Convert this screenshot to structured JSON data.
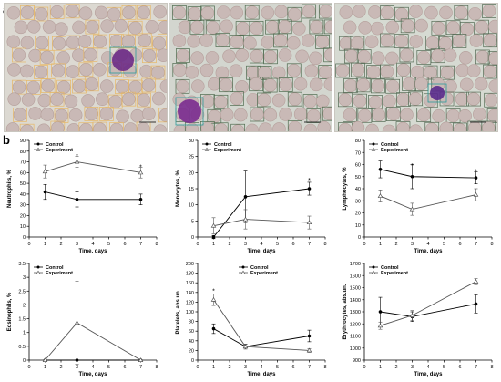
{
  "panel_a_label": "a",
  "panel_b_label": "b",
  "micrographs": [
    {
      "name": "micrograph-neutrophil",
      "bg": "#dcd9d2",
      "box_color": "#e7b766",
      "cell_color": "#6b2a86"
    },
    {
      "name": "micrograph-monocyte",
      "bg": "#d3d6cf",
      "box_color": "#4f6b4f",
      "cell_color": "#7a2b8f"
    },
    {
      "name": "micrograph-lymphocyte",
      "bg": "#d6dad2",
      "box_color": "#556b55",
      "cell_color": "#5a2a8c"
    }
  ],
  "colors": {
    "axis": "#000000",
    "control": "#000000",
    "experiment": "#555555"
  },
  "chart_data": [
    {
      "type": "line",
      "x": [
        1,
        3,
        7
      ],
      "xlim": [
        0,
        8
      ],
      "xticks": [
        0,
        1,
        2,
        3,
        4,
        5,
        6,
        7,
        8
      ],
      "xlabel": "Time, days",
      "ylabel": "Neutrophils, %",
      "ylim": [
        0,
        90
      ],
      "yticks": [
        0,
        10,
        20,
        30,
        40,
        50,
        60,
        70,
        80,
        90
      ],
      "legend": "top-left",
      "series": [
        {
          "name": "Control",
          "marker": "circle",
          "values": [
            42,
            35,
            35
          ],
          "err": [
            7,
            7,
            5
          ]
        },
        {
          "name": "Experiment",
          "marker": "triangle",
          "values": [
            61,
            70,
            60
          ],
          "err": [
            6,
            5,
            5
          ]
        }
      ],
      "annotations": [
        {
          "x": 3,
          "y": 75,
          "text": "*"
        },
        {
          "x": 7,
          "y": 65,
          "text": "*"
        }
      ]
    },
    {
      "type": "line",
      "x": [
        1,
        3,
        7
      ],
      "xlim": [
        0,
        8
      ],
      "xticks": [
        0,
        1,
        2,
        3,
        4,
        5,
        6,
        7,
        8
      ],
      "xlabel": "Time, days",
      "ylabel": "Monocytes, %",
      "ylim": [
        0,
        30
      ],
      "yticks": [
        0,
        5,
        10,
        15,
        20,
        25,
        30
      ],
      "legend": "top-left",
      "series": [
        {
          "name": "Control",
          "marker": "circle",
          "values": [
            0,
            12.5,
            15
          ],
          "err": [
            0.5,
            8,
            2
          ]
        },
        {
          "name": "Experiment",
          "marker": "triangle",
          "values": [
            3.5,
            5.5,
            4.5
          ],
          "err": [
            2.5,
            3,
            2
          ]
        }
      ],
      "annotations": [
        {
          "x": 7,
          "y": 17.5,
          "text": "*"
        }
      ]
    },
    {
      "type": "line",
      "x": [
        1,
        3,
        7
      ],
      "xlim": [
        0,
        8
      ],
      "xticks": [
        0,
        1,
        2,
        3,
        4,
        5,
        6,
        7,
        8
      ],
      "xlabel": "Time, days",
      "ylabel": "Lymphocytes, %",
      "ylim": [
        0,
        80
      ],
      "yticks": [
        0,
        10,
        20,
        30,
        40,
        50,
        60,
        70,
        80
      ],
      "legend": "top-left",
      "series": [
        {
          "name": "Control",
          "marker": "circle",
          "values": [
            56,
            50,
            49
          ],
          "err": [
            7,
            10,
            5
          ]
        },
        {
          "name": "Experiment",
          "marker": "triangle",
          "values": [
            34,
            23,
            35
          ],
          "err": [
            5,
            5,
            5
          ]
        }
      ],
      "annotations": [
        {
          "x": 3,
          "y": 59,
          "text": "*"
        },
        {
          "x": 7,
          "y": 54,
          "text": "*"
        }
      ]
    },
    {
      "type": "line",
      "x": [
        1,
        3,
        7
      ],
      "xlim": [
        0,
        8
      ],
      "xticks": [
        0,
        1,
        2,
        3,
        4,
        5,
        6,
        7,
        8
      ],
      "xlabel": "Time, days",
      "ylabel": "Eosinophils, %",
      "ylim": [
        0,
        3.5
      ],
      "yticks": [
        0,
        0.5,
        1,
        1.5,
        2,
        2.5,
        3,
        3.5
      ],
      "legend": "top-left",
      "series": [
        {
          "name": "Control",
          "marker": "circle",
          "values": [
            0,
            0,
            0
          ],
          "err": [
            0,
            0,
            0
          ]
        },
        {
          "name": "Experiment",
          "marker": "triangle",
          "values": [
            0,
            1.35,
            0
          ],
          "err": [
            0,
            1.5,
            0
          ]
        }
      ],
      "annotations": []
    },
    {
      "type": "line",
      "x": [
        1,
        3,
        7
      ],
      "xlim": [
        0,
        8
      ],
      "xticks": [
        0,
        1,
        2,
        3,
        4,
        5,
        6,
        7,
        8
      ],
      "xlabel": "Time, days",
      "ylabel": "Platelets, abs.un.",
      "ylim": [
        0,
        200
      ],
      "yticks": [
        0,
        20,
        40,
        60,
        80,
        100,
        120,
        140,
        160,
        180,
        200
      ],
      "legend": "top-center",
      "series": [
        {
          "name": "Control",
          "marker": "circle",
          "values": [
            65,
            28,
            50
          ],
          "err": [
            10,
            5,
            12
          ]
        },
        {
          "name": "Experiment",
          "marker": "triangle",
          "values": [
            125,
            28,
            20
          ],
          "err": [
            12,
            5,
            4
          ]
        }
      ],
      "annotations": [
        {
          "x": 1,
          "y": 142,
          "text": "*"
        }
      ]
    },
    {
      "type": "line",
      "x": [
        1,
        3,
        7
      ],
      "xlim": [
        0,
        8
      ],
      "xticks": [
        0,
        1,
        2,
        3,
        4,
        5,
        6,
        7,
        8
      ],
      "xlabel": "Time, days",
      "ylabel": "Erythrocytes, abs.un.",
      "ylim": [
        900,
        1700
      ],
      "yticks": [
        900,
        1000,
        1100,
        1200,
        1300,
        1400,
        1500,
        1600,
        1700
      ],
      "legend": "top-left",
      "series": [
        {
          "name": "Control",
          "marker": "circle",
          "values": [
            1300,
            1260,
            1365
          ],
          "err": [
            120,
            40,
            75
          ]
        },
        {
          "name": "Experiment",
          "marker": "triangle",
          "values": [
            1185,
            1270,
            1550
          ],
          "err": [
            30,
            40,
            25
          ]
        }
      ],
      "annotations": []
    }
  ]
}
